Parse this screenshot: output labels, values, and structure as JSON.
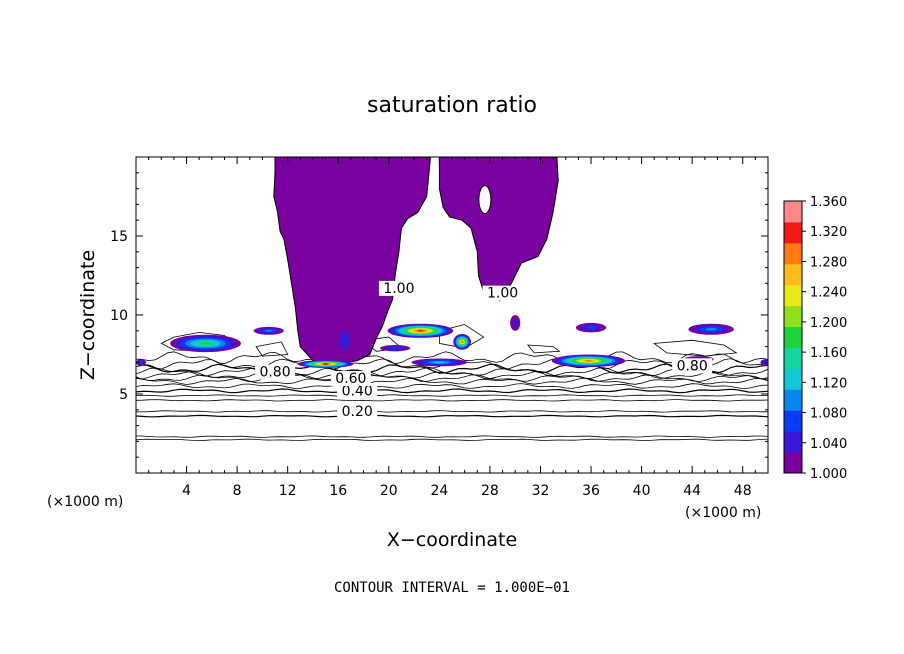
{
  "chart_data": {
    "type": "contour",
    "title": "saturation ratio",
    "xlabel": "X−coordinate",
    "ylabel": "Z−coordinate",
    "x_unit": "(×1000 m)",
    "y_unit": "(×1000 m)",
    "xlim": [
      0,
      50
    ],
    "ylim": [
      0,
      20
    ],
    "x_ticks": [
      4,
      8,
      12,
      16,
      20,
      24,
      28,
      32,
      36,
      40,
      44,
      48
    ],
    "y_ticks": [
      5,
      10,
      15
    ],
    "x_tick_labels": [
      "4",
      "8",
      "12",
      "16",
      "20",
      "24",
      "28",
      "32",
      "36",
      "40",
      "44",
      "48"
    ],
    "y_tick_labels": [
      "5",
      "10",
      "15"
    ],
    "contour_interval_text": "CONTOUR INTERVAL = 1.000E−01",
    "contour_levels": [
      0.1,
      0.2,
      0.3,
      0.4,
      0.5,
      0.6,
      0.7,
      0.8,
      0.9,
      1.0
    ],
    "contour_line_y": [
      {
        "level": 0.1,
        "y": 2.1
      },
      {
        "level": 0.15,
        "y": 2.3
      },
      {
        "level": 0.2,
        "y": 3.6
      },
      {
        "level": 0.25,
        "y": 3.9
      },
      {
        "level": 0.3,
        "y": 4.6
      },
      {
        "level": 0.35,
        "y": 4.9
      },
      {
        "level": 0.4,
        "y": 5.2
      },
      {
        "level": 0.5,
        "y": 5.5
      },
      {
        "level": 0.6,
        "y": 5.8
      },
      {
        "level": 0.65,
        "y": 6.0
      },
      {
        "level": 0.7,
        "y": 6.2
      },
      {
        "level": 0.75,
        "y": 6.4
      },
      {
        "level": 0.8,
        "y": 6.6
      },
      {
        "level": 0.85,
        "y": 6.9
      },
      {
        "level": 0.9,
        "y": 7.3
      }
    ],
    "contour_labels": [
      {
        "text": "0.20",
        "x": 17.5,
        "y": 3.6
      },
      {
        "text": "0.40",
        "x": 17.5,
        "y": 4.9
      },
      {
        "text": "0.60",
        "x": 17.0,
        "y": 5.7
      },
      {
        "text": "0.80",
        "x": 11.0,
        "y": 6.1
      },
      {
        "text": "0.80",
        "x": 44.0,
        "y": 6.5
      },
      {
        "text": "1.00",
        "x": 29.0,
        "y": 11.1
      },
      {
        "text": "1.00",
        "x": 20.8,
        "y": 11.4
      }
    ],
    "colorbar": {
      "min": 1.0,
      "max": 1.36,
      "tick_labels": [
        "1.000",
        "1.040",
        "1.080",
        "1.120",
        "1.160",
        "1.200",
        "1.240",
        "1.280",
        "1.320",
        "1.360"
      ],
      "colors": [
        "#7a00a0",
        "#3b16d6",
        "#0a3cf5",
        "#0a86f0",
        "#10c8d6",
        "#12d6a2",
        "#1ed23a",
        "#8ee01e",
        "#e8e81a",
        "#ffbc18",
        "#ff7a14",
        "#f01a14",
        "#ff8888"
      ]
    },
    "saturated_region_fill": "#7a00a0",
    "plot_background": "#ffffff",
    "legend": "right"
  }
}
